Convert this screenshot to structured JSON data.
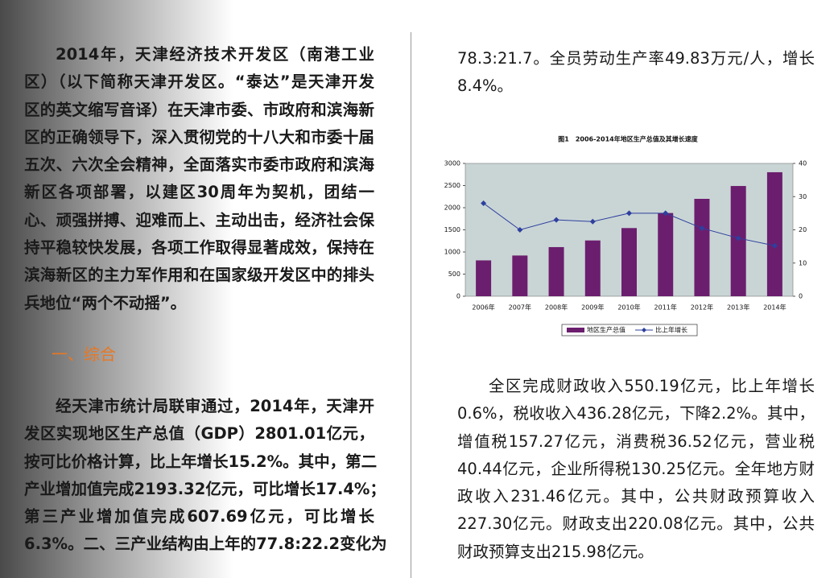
{
  "left_column": {
    "paragraph_1": [
      "2014年，天津经济技术开发区（南港工业",
      "区）（以下简称天津开发区。“泰达”是天津开发",
      "区的英文缩写音译）在天津市委、市政府和滨海新",
      "区的正确领导下，深入贯彻党的十八大和市委十届",
      "五次、六次全会精神，全面落实市委市政府和滨海",
      "新区各项部署，以建区30周年为契机，团结一",
      "心、顽强拼搏、迎难而上、主动出击，经济社会保",
      "持平稳较快发展，各项工作取得显著成效，保持在",
      "滨海新区的主力军作用和在国家级开发区中的排头",
      "兵地位“两个不动摇”。"
    ],
    "heading": "一、综合",
    "paragraph_2": [
      "经天津市统计局联审通过，2014年，天津开",
      "发区实现地区生产总值（GDP）2801.01亿元，",
      "按可比价格计算，比上年增长15.2%。其中，第二",
      "产业增加值完成2193.32亿元，可比增长17.4%；",
      "第三产业增加值完成607.69亿元，可比增长",
      "6.3%。二、三产业结构由上年的77.8:22.2变化为"
    ]
  },
  "right_column": {
    "paragraph_top": [
      "78.3:21.7。全员劳动生产率49.83万元/人，增长",
      "8.4%。"
    ],
    "paragraph_bottom": [
      "全区完成财政收入550.19亿元，比上年增长",
      "0.6%，税收收入436.28亿元，下降2.2%。其中，",
      "增值税157.27亿元，消费税36.52亿元，营业税",
      "40.44亿元，企业所得税130.25亿元。全年地方财",
      "政收入231.46亿元。其中，公共财政预算收入",
      "227.30亿元。财政支出220.08亿元。其中，公共",
      "财政预算支出215.98亿元。"
    ]
  },
  "chart_data": {
    "type": "bar",
    "title": "图1　2006-2014年地区生产总值及其增长速度",
    "categories": [
      "2006年",
      "2007年",
      "2008年",
      "2009年",
      "2010年",
      "2011年",
      "2012年",
      "2013年",
      "2014年"
    ],
    "series": [
      {
        "name": "地区生产总值",
        "type": "bar",
        "color": "#6b1e6e",
        "values": [
          810,
          920,
          1110,
          1260,
          1540,
          1880,
          2200,
          2490,
          2801
        ]
      },
      {
        "name": "比上年增长",
        "type": "line",
        "axis": "y2",
        "color": "#2e3f9e",
        "values": [
          28,
          20,
          23,
          22.5,
          25,
          25,
          20.5,
          17.5,
          15.2
        ]
      }
    ],
    "ylim": [
      0,
      3000
    ],
    "yticks": [
      0,
      500,
      1000,
      1500,
      2000,
      2500,
      3000
    ],
    "y2lim": [
      0,
      40
    ],
    "y2ticks": [
      0,
      10,
      20,
      30,
      40
    ],
    "plot_background": "#c9d5d5",
    "legend": "bottom"
  }
}
